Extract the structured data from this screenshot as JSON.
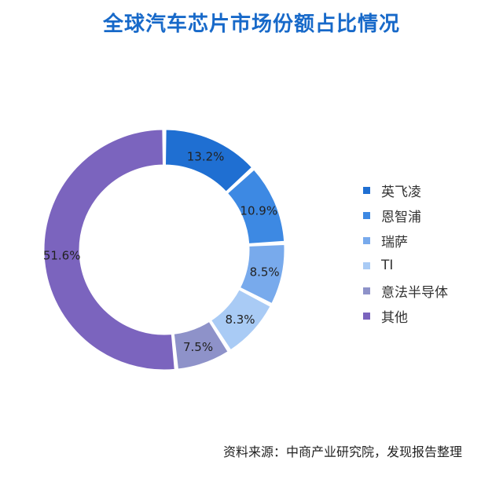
{
  "title": "全球汽车芯片市场份额占比情况",
  "source": "资料来源：中商产业研究院，发现报告整理",
  "chart_data": {
    "type": "pie",
    "style": "donut",
    "slices": [
      {
        "label": "英飞凌",
        "value": 13.2,
        "display": "13.2%",
        "color": "#1f6fd2"
      },
      {
        "label": "恩智浦",
        "value": 10.9,
        "display": "10.9%",
        "color": "#3d89e3"
      },
      {
        "label": "瑞萨",
        "value": 8.5,
        "display": "8.5%",
        "color": "#78aaec"
      },
      {
        "label": "TI",
        "value": 8.3,
        "display": "8.3%",
        "color": "#a9cbf5"
      },
      {
        "label": "意法半导体",
        "value": 7.5,
        "display": "7.5%",
        "color": "#8e92c9"
      },
      {
        "label": "其他",
        "value": 51.6,
        "display": "51.6%",
        "color": "#7b64be"
      }
    ],
    "legend_position": "right"
  }
}
